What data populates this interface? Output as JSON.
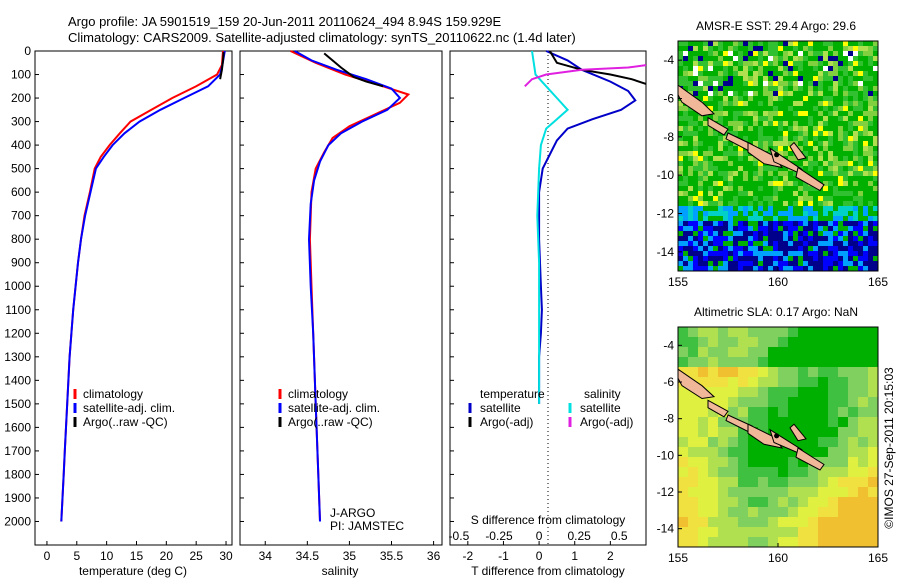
{
  "header": {
    "line1": "Argo profile: JA 5901519_159 20-Jun-2011 20110624_494 8.94S 159.929E",
    "line2": "Climatology: CARS2009. Satellite-adjusted climatology: synTS_20110622.nc (1.4d later)"
  },
  "side_label": "©IMOS 27-Sep-2011 20:15:03",
  "chart_data": [
    {
      "id": "temperature",
      "type": "line",
      "xlabel": "temperature (deg C)",
      "xlim": [
        -2,
        31
      ],
      "ylim": [
        0,
        2100
      ],
      "y_reversed": true,
      "x_ticks": [
        0,
        5,
        10,
        15,
        20,
        25,
        30
      ],
      "y_ticks": [
        0,
        100,
        200,
        300,
        400,
        500,
        600,
        700,
        800,
        900,
        1000,
        1100,
        1200,
        1300,
        1400,
        1500,
        1600,
        1700,
        1800,
        1900,
        2000
      ],
      "legend": {
        "position": "lower-right",
        "entries": [
          {
            "label": "climatology",
            "color": "#ff0000"
          },
          {
            "label": "satellite-adj. clim.",
            "color": "#0000ff"
          },
          {
            "label": "Argo(..raw -QC)",
            "color": "#000000"
          }
        ]
      },
      "series": [
        {
          "name": "climatology",
          "color": "#ff0000",
          "points": [
            [
              29.5,
              0
            ],
            [
              29.3,
              60
            ],
            [
              28.5,
              100
            ],
            [
              25,
              150
            ],
            [
              21,
              200
            ],
            [
              17.5,
              250
            ],
            [
              14,
              300
            ],
            [
              12.2,
              350
            ],
            [
              10.5,
              400
            ],
            [
              9,
              450
            ],
            [
              8,
              500
            ],
            [
              7.2,
              600
            ],
            [
              6.3,
              700
            ],
            [
              5.7,
              800
            ],
            [
              5.2,
              900
            ],
            [
              4.8,
              1000
            ],
            [
              4.4,
              1100
            ],
            [
              4.1,
              1200
            ],
            [
              3.8,
              1300
            ],
            [
              3.6,
              1400
            ],
            [
              3.4,
              1500
            ],
            [
              3.2,
              1600
            ],
            [
              3,
              1700
            ],
            [
              2.8,
              1800
            ],
            [
              2.6,
              1900
            ],
            [
              2.4,
              2000
            ]
          ]
        },
        {
          "name": "satellite-adj. clim.",
          "color": "#0000ff",
          "points": [
            [
              29.8,
              0
            ],
            [
              29.4,
              60
            ],
            [
              29,
              100
            ],
            [
              27,
              150
            ],
            [
              23,
              200
            ],
            [
              19,
              250
            ],
            [
              15.5,
              300
            ],
            [
              13,
              350
            ],
            [
              11,
              400
            ],
            [
              9.5,
              450
            ],
            [
              8.2,
              500
            ],
            [
              7.3,
              600
            ],
            [
              6.4,
              700
            ],
            [
              5.7,
              800
            ],
            [
              5.2,
              900
            ],
            [
              4.8,
              1000
            ],
            [
              4.4,
              1100
            ],
            [
              4.1,
              1200
            ],
            [
              3.8,
              1300
            ],
            [
              3.6,
              1400
            ],
            [
              3.4,
              1500
            ],
            [
              3.2,
              1600
            ],
            [
              3,
              1700
            ],
            [
              2.8,
              1800
            ],
            [
              2.6,
              1900
            ],
            [
              2.4,
              2000
            ]
          ]
        },
        {
          "name": "Argo(..raw -QC)",
          "color": "#000000",
          "points": [
            [
              29.6,
              5
            ],
            [
              29.5,
              40
            ],
            [
              29.3,
              80
            ],
            [
              29,
              120
            ]
          ]
        }
      ]
    },
    {
      "id": "salinity",
      "type": "line",
      "xlabel": "salinity",
      "xlim": [
        33.7,
        36.1
      ],
      "ylim": [
        0,
        2100
      ],
      "y_reversed": true,
      "x_ticks": [
        34,
        34.5,
        35,
        35.5,
        36
      ],
      "annotation": [
        "J-ARGO",
        "PI: JAMSTEC"
      ],
      "legend": {
        "position": "lower-right",
        "entries": [
          {
            "label": "climatology",
            "color": "#ff0000"
          },
          {
            "label": "satellite-adj. clim.",
            "color": "#0000ff"
          },
          {
            "label": "Argo(..raw -QC)",
            "color": "#000000"
          }
        ]
      },
      "series": [
        {
          "name": "climatology",
          "color": "#ff0000",
          "points": [
            [
              34.3,
              0
            ],
            [
              34.6,
              50
            ],
            [
              34.95,
              100
            ],
            [
              35.4,
              150
            ],
            [
              35.7,
              185
            ],
            [
              35.6,
              220
            ],
            [
              35.3,
              270
            ],
            [
              35,
              320
            ],
            [
              34.8,
              370
            ],
            [
              34.7,
              430
            ],
            [
              34.6,
              500
            ],
            [
              34.55,
              600
            ],
            [
              34.53,
              800
            ],
            [
              34.55,
              1000
            ],
            [
              34.57,
              1200
            ],
            [
              34.6,
              1500
            ],
            [
              34.63,
              1800
            ],
            [
              34.65,
              2000
            ]
          ]
        },
        {
          "name": "satellite-adj. clim.",
          "color": "#0000ff",
          "points": [
            [
              34.35,
              0
            ],
            [
              34.55,
              40
            ],
            [
              34.85,
              80
            ],
            [
              35.2,
              120
            ],
            [
              35.5,
              160
            ],
            [
              35.6,
              200
            ],
            [
              35.45,
              250
            ],
            [
              35.15,
              300
            ],
            [
              34.9,
              350
            ],
            [
              34.75,
              400
            ],
            [
              34.65,
              470
            ],
            [
              34.58,
              550
            ],
            [
              34.54,
              650
            ],
            [
              34.52,
              800
            ],
            [
              34.54,
              1000
            ],
            [
              34.57,
              1200
            ],
            [
              34.6,
              1500
            ],
            [
              34.63,
              1800
            ],
            [
              34.65,
              2000
            ]
          ]
        },
        {
          "name": "Argo(..raw -QC)",
          "color": "#000000",
          "points": [
            [
              34.7,
              10
            ],
            [
              34.9,
              70
            ],
            [
              35.05,
              110
            ],
            [
              35.2,
              130
            ],
            [
              35.4,
              150
            ]
          ]
        }
      ]
    },
    {
      "id": "difference",
      "type": "line",
      "xlabel": "T difference from climatology",
      "xlabel2": "S difference from climatology",
      "xlim": [
        -2.5,
        3
      ],
      "ylim": [
        0,
        2100
      ],
      "y_reversed": true,
      "x_ticks": [
        -2,
        -1,
        0,
        1,
        2
      ],
      "x_ticks2": [
        {
          "value": -0.5,
          "label": "-0.5"
        },
        {
          "value": -0.25,
          "label": "-0.25"
        },
        {
          "value": 0,
          "label": "0"
        },
        {
          "value": 0.25,
          "label": "0.25"
        },
        {
          "value": 0.5,
          "label": "0.5"
        }
      ],
      "legend": {
        "position": "lower-center",
        "columns": [
          {
            "title": "temperature",
            "entries": [
              {
                "label": "satellite",
                "color": "#0000c8"
              },
              {
                "label": "Argo(-adj)",
                "color": "#000000"
              }
            ]
          },
          {
            "title": "salinity",
            "entries": [
              {
                "label": "satellite",
                "color": "#00e0e0"
              },
              {
                "label": "Argo(-adj)",
                "color": "#e020e0"
              }
            ]
          }
        ]
      },
      "series": [
        {
          "name": "T satellite",
          "color": "#0000c8",
          "points": [
            [
              0.2,
              0
            ],
            [
              0.8,
              40
            ],
            [
              1.2,
              80
            ],
            [
              2,
              130
            ],
            [
              2.5,
              170
            ],
            [
              2.7,
              210
            ],
            [
              2.3,
              250
            ],
            [
              1.5,
              290
            ],
            [
              0.8,
              330
            ],
            [
              0.5,
              380
            ],
            [
              0.3,
              440
            ],
            [
              0.1,
              500
            ],
            [
              0,
              600
            ],
            [
              0,
              800
            ],
            [
              0.05,
              1000
            ],
            [
              0.08,
              1100
            ],
            [
              0.05,
              1200
            ],
            [
              0,
              1300
            ],
            [
              0,
              1500
            ]
          ]
        },
        {
          "name": "T Argo(-adj)",
          "color": "#000000",
          "points": [
            [
              0.3,
              0
            ],
            [
              0.5,
              50
            ],
            [
              1.2,
              80
            ],
            [
              2,
              100
            ],
            [
              2.6,
              120
            ],
            [
              3,
              140
            ]
          ]
        },
        {
          "name": "S satellite",
          "color": "#00e0e0",
          "points": [
            [
              -0.2,
              0
            ],
            [
              -0.1,
              100
            ],
            [
              0.2,
              150
            ],
            [
              0.5,
              200
            ],
            [
              0.8,
              250
            ],
            [
              0.5,
              290
            ],
            [
              0.2,
              330
            ],
            [
              0.05,
              400
            ],
            [
              0,
              500
            ],
            [
              -0.05,
              700
            ],
            [
              0,
              900
            ],
            [
              0,
              1200
            ],
            [
              0,
              1500
            ]
          ]
        },
        {
          "name": "S Argo(-adj)",
          "color": "#e020e0",
          "points": [
            [
              -0.4,
              150
            ],
            [
              -0.2,
              120
            ],
            [
              0.2,
              100
            ],
            [
              1.2,
              80
            ],
            [
              2.5,
              70
            ],
            [
              3,
              60
            ]
          ]
        }
      ]
    },
    {
      "id": "sst_map",
      "type": "heatmap",
      "title": "AMSR-E SST: 29.4 Argo: 29.6",
      "x_ticks": [
        155,
        160,
        165
      ],
      "y_ticks": [
        -4,
        -6,
        -8,
        -10,
        -12,
        -14
      ],
      "xlim": [
        155,
        165
      ],
      "ylim": [
        -15,
        -3
      ],
      "colors": [
        "#ffffff",
        "#00008b",
        "#0000ff",
        "#00a0ff",
        "#00d0c8",
        "#00b000",
        "#30c030",
        "#80d040",
        "#b0e050",
        "#ffff00"
      ]
    },
    {
      "id": "sla_map",
      "type": "heatmap",
      "title": "Altimetric SLA: 0.17 Argo: NaN",
      "x_ticks": [
        155,
        160,
        165
      ],
      "y_ticks": [
        -4,
        -6,
        -8,
        -10,
        -12,
        -14
      ],
      "xlim": [
        155,
        165
      ],
      "ylim": [
        -15,
        -3
      ],
      "colors": [
        "#00b000",
        "#40c040",
        "#80d060",
        "#b0e050",
        "#e0f040",
        "#f0e040",
        "#f0c030"
      ]
    }
  ]
}
